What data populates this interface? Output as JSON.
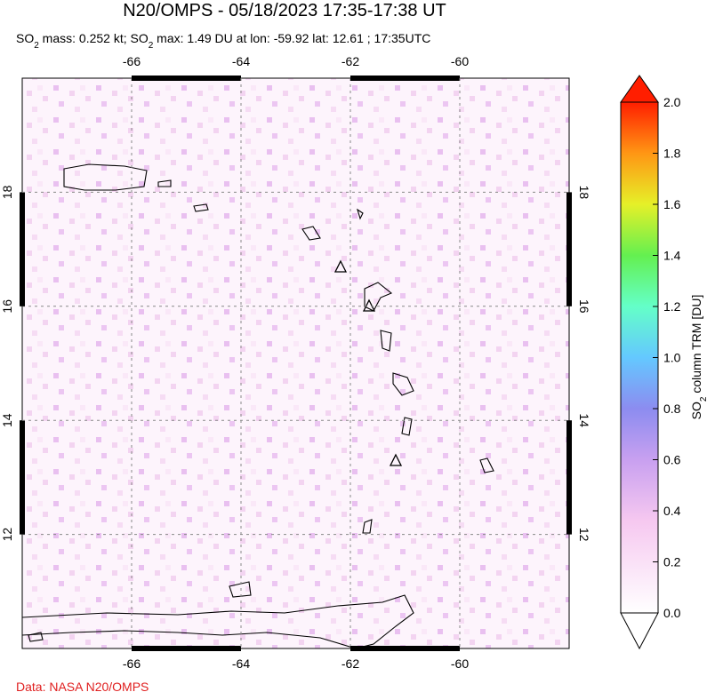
{
  "header": {
    "title": "N20/OMPS - 05/18/2023 17:35-17:38 UT",
    "subtitle": [
      "SO",
      "2",
      " mass: 0.252 kt; SO",
      "2",
      " max: 1.49 DU at lon: -59.92 lat: 12.61 ; 17:35UTC"
    ]
  },
  "map": {
    "xlim": [
      -68,
      -58
    ],
    "ylim": [
      10,
      20
    ],
    "xticks": [
      -66,
      -64,
      -62,
      -60
    ],
    "yticks": [
      12,
      14,
      16,
      18
    ],
    "grid": true
  },
  "colorbar": {
    "label": [
      "SO",
      "2",
      " column TRM [DU]"
    ],
    "lim": [
      0,
      2
    ],
    "ticks": [
      {
        "value": 0,
        "label": "0.0"
      },
      {
        "value": 0.2,
        "label": "0.2"
      },
      {
        "value": 0.4,
        "label": "0.4"
      },
      {
        "value": 0.6,
        "label": "0.6"
      },
      {
        "value": 0.8,
        "label": "0.8"
      },
      {
        "value": 1.0,
        "label": "1.0"
      },
      {
        "value": 1.2,
        "label": "1.2"
      },
      {
        "value": 1.4,
        "label": "1.4"
      },
      {
        "value": 1.6,
        "label": "1.6"
      },
      {
        "value": 1.8,
        "label": "1.8"
      },
      {
        "value": 2.0,
        "label": "2.0"
      }
    ]
  },
  "footer": {
    "source": "Data: NASA N20/OMPS"
  }
}
